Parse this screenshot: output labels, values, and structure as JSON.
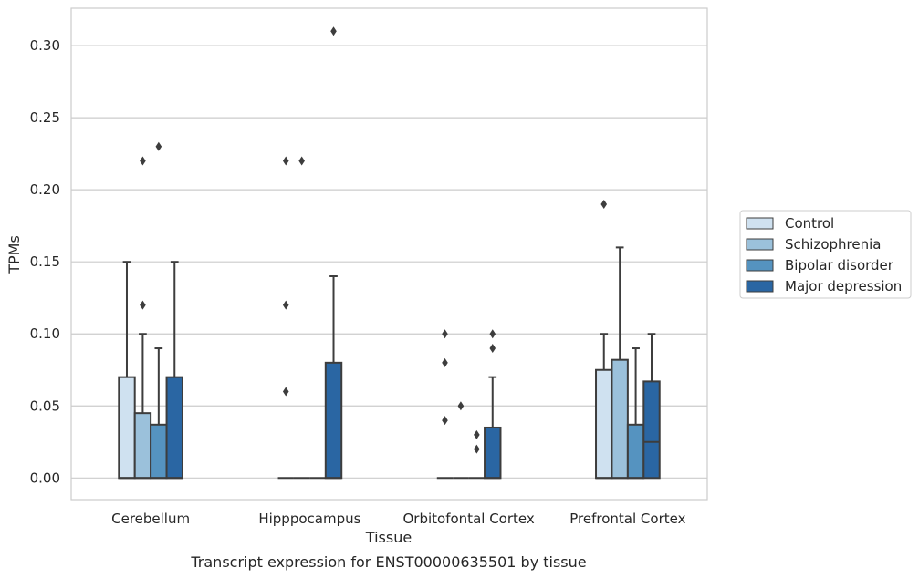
{
  "chart_data": {
    "type": "box",
    "xlabel": "Tissue",
    "ylabel": "TPMs",
    "caption": "Transcript expression for ENST00000635501 by tissue",
    "ylim": [
      -0.015,
      0.326
    ],
    "yticks": [
      "0.00",
      "0.05",
      "0.10",
      "0.15",
      "0.20",
      "0.25",
      "0.30"
    ],
    "grid": "horizontal",
    "legend_position": "right",
    "categories": [
      "Cerebellum",
      "Hipppocampus",
      "Orbitofontal Cortex",
      "Prefrontal Cortex"
    ],
    "series": [
      {
        "name": "Control",
        "color": "#cfe1f0",
        "boxes": [
          {
            "min": 0,
            "q1": 0,
            "median": 0,
            "q3": 0.07,
            "max": 0.15,
            "outliers": []
          },
          {
            "min": 0,
            "q1": 0,
            "median": 0,
            "q3": 0,
            "max": 0,
            "outliers": [
              0.22,
              0.12,
              0.06
            ]
          },
          {
            "min": 0,
            "q1": 0,
            "median": 0,
            "q3": 0,
            "max": 0,
            "outliers": [
              0.1,
              0.08,
              0.04
            ]
          },
          {
            "min": 0,
            "q1": 0,
            "median": 0,
            "q3": 0.075,
            "max": 0.1,
            "outliers": [
              0.19
            ]
          }
        ]
      },
      {
        "name": "Schizophrenia",
        "color": "#9bc1db",
        "boxes": [
          {
            "min": 0,
            "q1": 0,
            "median": 0,
            "q3": 0.045,
            "max": 0.1,
            "outliers": [
              0.22,
              0.12
            ]
          },
          {
            "min": 0,
            "q1": 0,
            "median": 0,
            "q3": 0,
            "max": 0,
            "outliers": [
              0.22
            ]
          },
          {
            "min": 0,
            "q1": 0,
            "median": 0,
            "q3": 0,
            "max": 0,
            "outliers": [
              0.05
            ]
          },
          {
            "min": 0,
            "q1": 0,
            "median": 0,
            "q3": 0.082,
            "max": 0.16,
            "outliers": []
          }
        ]
      },
      {
        "name": "Bipolar disorder",
        "color": "#5593c0",
        "boxes": [
          {
            "min": 0,
            "q1": 0,
            "median": 0,
            "q3": 0.037,
            "max": 0.09,
            "outliers": [
              0.23
            ]
          },
          {
            "min": 0,
            "q1": 0,
            "median": 0,
            "q3": 0,
            "max": 0,
            "outliers": []
          },
          {
            "min": 0,
            "q1": 0,
            "median": 0,
            "q3": 0,
            "max": 0,
            "outliers": [
              0.03,
              0.02
            ]
          },
          {
            "min": 0,
            "q1": 0,
            "median": 0,
            "q3": 0.037,
            "max": 0.09,
            "outliers": []
          }
        ]
      },
      {
        "name": "Major depression",
        "color": "#2a66a3",
        "boxes": [
          {
            "min": 0,
            "q1": 0,
            "median": 0,
            "q3": 0.07,
            "max": 0.15,
            "outliers": []
          },
          {
            "min": 0,
            "q1": 0,
            "median": 0,
            "q3": 0.08,
            "max": 0.14,
            "outliers": [
              0.31
            ]
          },
          {
            "min": 0,
            "q1": 0,
            "median": 0,
            "q3": 0.035,
            "max": 0.07,
            "outliers": [
              0.1,
              0.09
            ]
          },
          {
            "min": 0,
            "q1": 0,
            "median": 0.025,
            "q3": 0.067,
            "max": 0.1,
            "outliers": []
          }
        ]
      }
    ]
  }
}
